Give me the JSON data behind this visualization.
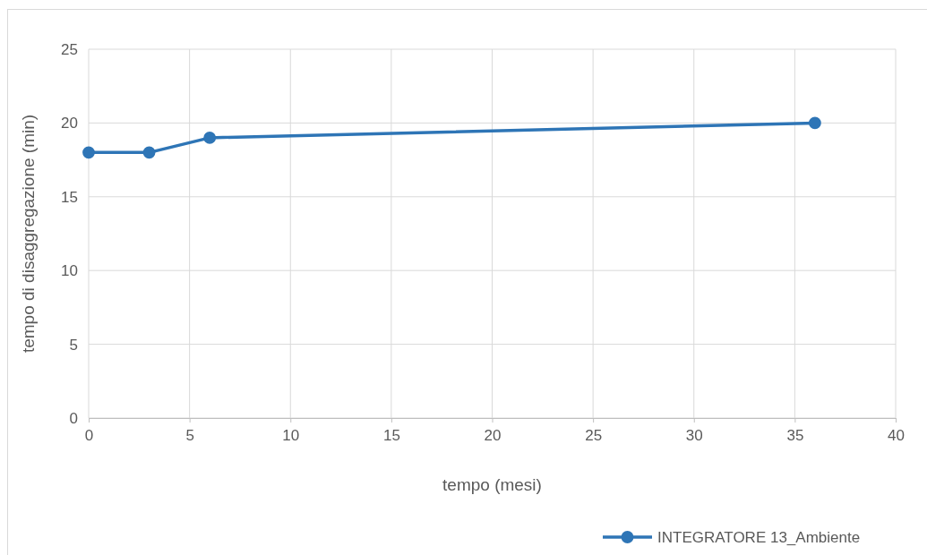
{
  "chart_data": {
    "type": "line",
    "xlabel": "tempo (mesi)",
    "ylabel": "tempo di disaggregazione (min)",
    "x": [
      0,
      3,
      6,
      36
    ],
    "series": [
      {
        "name": "INTEGRATORE 13_Ambiente",
        "color": "#2e75b6",
        "values": [
          18,
          18,
          19,
          20
        ]
      }
    ],
    "xlim": [
      0,
      40
    ],
    "xticks": [
      0,
      5,
      10,
      15,
      20,
      25,
      30,
      35,
      40
    ],
    "ylim": [
      0,
      25
    ],
    "yticks": [
      0,
      5,
      10,
      15,
      20,
      25
    ],
    "grid": true,
    "legend": "bottom",
    "marker": "circle",
    "line_style": "solid"
  }
}
